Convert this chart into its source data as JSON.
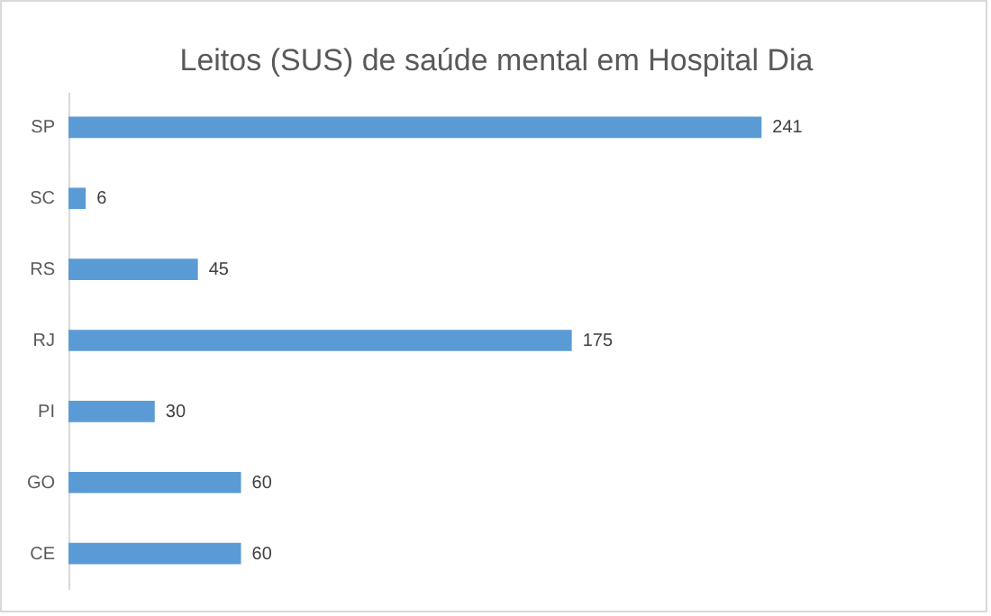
{
  "chart_data": {
    "type": "bar",
    "title": "Leitos (SUS) de saúde mental em Hospital Dia",
    "orientation": "horizontal",
    "categories": [
      "SP",
      "SC",
      "RS",
      "RJ",
      "PI",
      "GO",
      "CE"
    ],
    "values": [
      241,
      6,
      45,
      175,
      30,
      60,
      60
    ],
    "color": "#5b9bd5",
    "data_labels": true
  }
}
